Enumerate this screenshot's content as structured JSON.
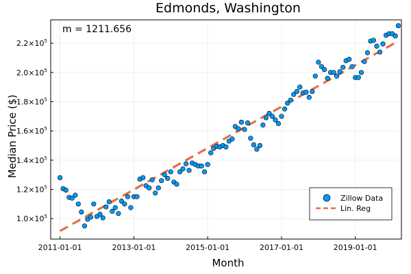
{
  "chart_data": {
    "type": "scatter",
    "title": "Edmonds, Washington",
    "xlabel": "Month",
    "ylabel": "Median Price ($)",
    "annotation": "m = 1211.656",
    "x_ticks": [
      "2011-01-01",
      "2013-01-01",
      "2015-01-01",
      "2017-01-01",
      "2019-01-01"
    ],
    "y_ticks": [
      {
        "value": 100000,
        "mantissa": "1.0×10",
        "exp": "5"
      },
      {
        "value": 120000,
        "mantissa": "1.2×10",
        "exp": "5"
      },
      {
        "value": 140000,
        "mantissa": "1.4×10",
        "exp": "5"
      },
      {
        "value": 160000,
        "mantissa": "1.6×10",
        "exp": "5"
      },
      {
        "value": 180000,
        "mantissa": "1.8×10",
        "exp": "5"
      },
      {
        "value": 200000,
        "mantissa": "2.0×10",
        "exp": "5"
      },
      {
        "value": 220000,
        "mantissa": "2.2×10",
        "exp": "5"
      }
    ],
    "xlim": [
      "2010-10-01",
      "2020-04-01"
    ],
    "ylim": [
      86000,
      236000
    ],
    "grid": true,
    "legend_position": "bottom-right",
    "series": [
      {
        "name": "Zillow Data",
        "kind": "scatter",
        "color": "#009AFA",
        "points": [
          [
            "2011-01-01",
            128000
          ],
          [
            "2011-02-01",
            120500
          ],
          [
            "2011-03-01",
            119500
          ],
          [
            "2011-04-01",
            114500
          ],
          [
            "2011-05-01",
            114000
          ],
          [
            "2011-06-01",
            116000
          ],
          [
            "2011-07-01",
            110000
          ],
          [
            "2011-08-01",
            104500
          ],
          [
            "2011-09-01",
            95000
          ],
          [
            "2011-10-01",
            99500
          ],
          [
            "2011-11-01",
            101000
          ],
          [
            "2011-12-01",
            110000
          ],
          [
            "2012-01-01",
            101500
          ],
          [
            "2012-02-01",
            103000
          ],
          [
            "2012-03-01",
            100500
          ],
          [
            "2012-04-01",
            108000
          ],
          [
            "2012-05-01",
            111500
          ],
          [
            "2012-06-01",
            105000
          ],
          [
            "2012-07-01",
            107500
          ],
          [
            "2012-08-01",
            103500
          ],
          [
            "2012-09-01",
            112000
          ],
          [
            "2012-10-01",
            110000
          ],
          [
            "2012-11-01",
            115000
          ],
          [
            "2012-12-01",
            107500
          ],
          [
            "2013-01-01",
            115000
          ],
          [
            "2013-02-01",
            115000
          ],
          [
            "2013-03-01",
            127000
          ],
          [
            "2013-04-01",
            128000
          ],
          [
            "2013-05-01",
            122500
          ],
          [
            "2013-06-01",
            121000
          ],
          [
            "2013-07-01",
            126500
          ],
          [
            "2013-08-01",
            117500
          ],
          [
            "2013-09-01",
            121000
          ],
          [
            "2013-10-01",
            126000
          ],
          [
            "2013-11-01",
            130000
          ],
          [
            "2013-12-01",
            127500
          ],
          [
            "2014-01-01",
            132000
          ],
          [
            "2014-02-01",
            125000
          ],
          [
            "2014-03-01",
            123500
          ],
          [
            "2014-04-01",
            132000
          ],
          [
            "2014-05-01",
            134000
          ],
          [
            "2014-06-01",
            137500
          ],
          [
            "2014-07-01",
            133000
          ],
          [
            "2014-08-01",
            138000
          ],
          [
            "2014-09-01",
            137000
          ],
          [
            "2014-10-01",
            136000
          ],
          [
            "2014-11-01",
            136000
          ],
          [
            "2014-12-01",
            132000
          ],
          [
            "2015-01-01",
            137000
          ],
          [
            "2015-02-01",
            145000
          ],
          [
            "2015-03-01",
            148000
          ],
          [
            "2015-04-01",
            149500
          ],
          [
            "2015-05-01",
            149000
          ],
          [
            "2015-06-01",
            150000
          ],
          [
            "2015-07-01",
            149000
          ],
          [
            "2015-08-01",
            153000
          ],
          [
            "2015-09-01",
            154500
          ],
          [
            "2015-10-01",
            163000
          ],
          [
            "2015-11-01",
            161500
          ],
          [
            "2015-12-01",
            166000
          ],
          [
            "2016-01-01",
            161000
          ],
          [
            "2016-02-01",
            165500
          ],
          [
            "2016-03-01",
            155000
          ],
          [
            "2016-04-01",
            150500
          ],
          [
            "2016-05-01",
            147500
          ],
          [
            "2016-06-01",
            150000
          ],
          [
            "2016-07-01",
            164000
          ],
          [
            "2016-08-01",
            169000
          ],
          [
            "2016-09-01",
            172000
          ],
          [
            "2016-10-01",
            170000
          ],
          [
            "2016-11-01",
            167500
          ],
          [
            "2016-12-01",
            165000
          ],
          [
            "2017-01-01",
            170000
          ],
          [
            "2017-02-01",
            175000
          ],
          [
            "2017-03-01",
            179000
          ],
          [
            "2017-04-01",
            181000
          ],
          [
            "2017-05-01",
            185000
          ],
          [
            "2017-06-01",
            187000
          ],
          [
            "2017-07-01",
            190000
          ],
          [
            "2017-08-01",
            186000
          ],
          [
            "2017-09-01",
            186500
          ],
          [
            "2017-10-01",
            183000
          ],
          [
            "2017-11-01",
            187000
          ],
          [
            "2017-12-01",
            197500
          ],
          [
            "2018-01-01",
            207000
          ],
          [
            "2018-02-01",
            204000
          ],
          [
            "2018-03-01",
            202000
          ],
          [
            "2018-04-01",
            196000
          ],
          [
            "2018-05-01",
            200000
          ],
          [
            "2018-06-01",
            200000
          ],
          [
            "2018-07-01",
            197500
          ],
          [
            "2018-08-01",
            200500
          ],
          [
            "2018-09-01",
            203500
          ],
          [
            "2018-10-01",
            208000
          ],
          [
            "2018-11-01",
            209000
          ],
          [
            "2018-12-01",
            204000
          ],
          [
            "2019-01-01",
            196500
          ],
          [
            "2019-02-01",
            196500
          ],
          [
            "2019-03-01",
            200000
          ],
          [
            "2019-04-01",
            207500
          ],
          [
            "2019-05-01",
            213500
          ],
          [
            "2019-06-01",
            221500
          ],
          [
            "2019-07-01",
            222000
          ],
          [
            "2019-08-01",
            218000
          ],
          [
            "2019-09-01",
            214000
          ],
          [
            "2019-10-01",
            219500
          ],
          [
            "2019-11-01",
            225500
          ],
          [
            "2019-12-01",
            226500
          ],
          [
            "2020-01-01",
            226500
          ],
          [
            "2020-02-01",
            225000
          ],
          [
            "2020-03-01",
            232000
          ]
        ]
      },
      {
        "name": "Lin. Reg",
        "kind": "line",
        "style": "dashed",
        "color": "#E26F46",
        "points": [
          [
            "2011-01-01",
            91500
          ],
          [
            "2020-03-01",
            221500
          ]
        ]
      }
    ]
  }
}
